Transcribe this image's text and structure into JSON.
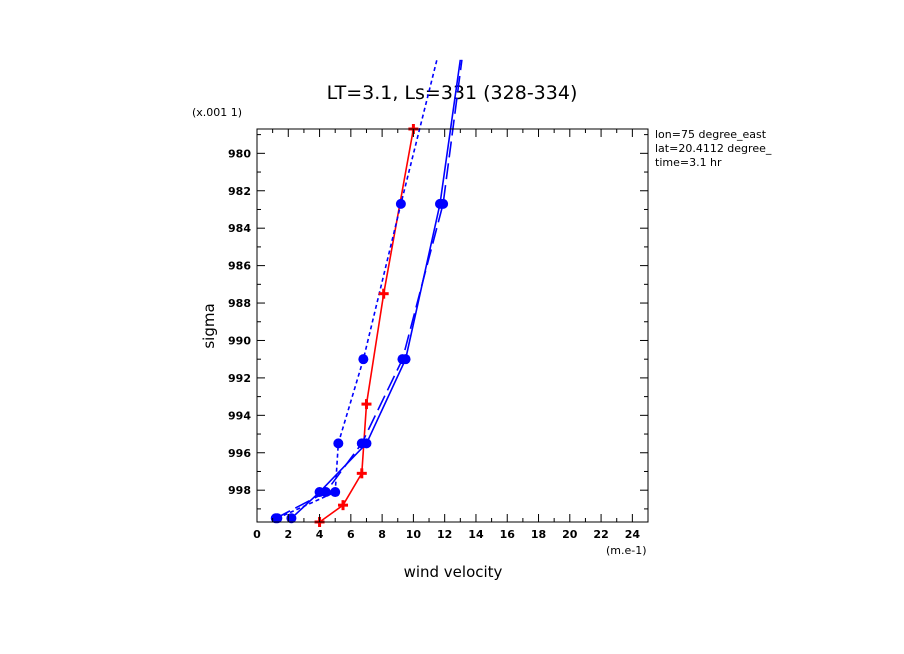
{
  "chart_data": {
    "type": "line",
    "title": "LT=3.1, Ls=331 (328-334)",
    "xlabel": "wind velocity",
    "ylabel": "sigma",
    "x_scale_label": "(m.e-1)",
    "y_scale_label": "(x.001 1)",
    "xlim": [
      0,
      25
    ],
    "ylim": [
      999.7,
      978.7
    ],
    "x_ticks": [
      0,
      2,
      4,
      6,
      8,
      10,
      12,
      14,
      16,
      18,
      20,
      22,
      24
    ],
    "y_ticks": [
      980,
      982,
      984,
      986,
      988,
      990,
      992,
      994,
      996,
      998
    ],
    "info": [
      "lon=75 degree_east",
      "lat=20.4112 degree_",
      "time=3.1 hr"
    ],
    "colors": {
      "red": "#ff0000",
      "blue": "#0000ff"
    },
    "series": [
      {
        "color": "#ff0000",
        "style": "solid",
        "marker": "plus",
        "x": [
          4.0,
          5.5,
          6.7,
          7.0,
          8.1,
          10.0
        ],
        "y": [
          999.7,
          998.8,
          997.1,
          993.4,
          987.5,
          978.7
        ]
      },
      {
        "color": "#0000ff",
        "style": "solid",
        "marker": "circle",
        "x": [
          2.2,
          4.0,
          7.0,
          9.5,
          11.7,
          13.0
        ],
        "y": [
          999.5,
          998.1,
          995.5,
          991.0,
          982.7,
          975.0
        ]
      },
      {
        "color": "#0000ff",
        "style": "dashed",
        "marker": "circle",
        "x": [
          1.2,
          4.4,
          6.7,
          9.3,
          11.9,
          13.1
        ],
        "y": [
          999.5,
          998.1,
          995.5,
          991.0,
          982.7,
          975.0
        ]
      },
      {
        "color": "#0000ff",
        "style": "dotted",
        "marker": "circle",
        "x": [
          1.3,
          5.0,
          5.2,
          6.8,
          9.2,
          11.5
        ],
        "y": [
          999.5,
          998.1,
          995.5,
          991.0,
          982.7,
          975.0
        ]
      }
    ]
  }
}
